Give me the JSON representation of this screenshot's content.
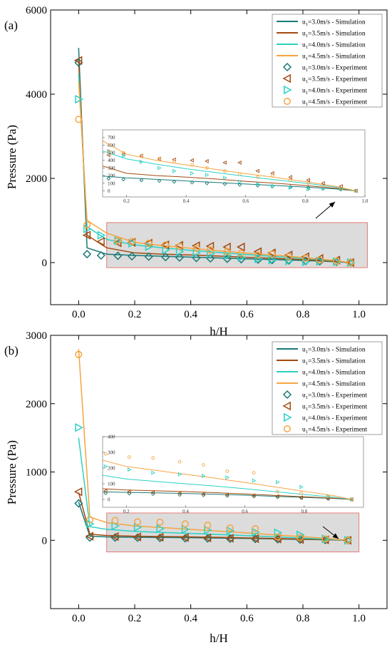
{
  "colors": {
    "u30": "#1a7a76",
    "u35": "#a24a10",
    "u40": "#2bd1c4",
    "u45": "#f5a442",
    "highlight_fill": "#dcdcdc",
    "highlight_stroke": "#e87c78"
  },
  "chart_data": [
    {
      "type": "line",
      "panel_label": "(a)",
      "xlabel": "h/H",
      "ylabel": "Pressure (Pa)",
      "xlim": [
        -0.1,
        1.1
      ],
      "ylim": [
        -1000,
        6000
      ],
      "xticks": [
        0.0,
        0.2,
        0.4,
        0.6,
        0.8,
        1.0
      ],
      "xtick_labels": [
        "0.0",
        "0.2",
        "0.4",
        "0.6",
        "0.8",
        "1.0"
      ],
      "yticks": [
        0,
        2000,
        4000,
        6000
      ],
      "ytick_labels": [
        "0",
        "2000",
        "4000",
        "6000"
      ],
      "legend_position": "top-right",
      "highlight_region": {
        "x": [
          0.1,
          1.03
        ],
        "y": [
          -120,
          950
        ]
      },
      "inset": {
        "xlim": [
          0.12,
          1.0
        ],
        "ylim": [
          -80,
          800
        ],
        "xticks": [
          0.2,
          0.4,
          0.6,
          0.8,
          1.0
        ],
        "xtick_labels": [
          "0.2",
          "0.4",
          "0.6",
          "0.8",
          "1.0"
        ],
        "yticks": [
          0,
          100,
          200,
          300,
          400,
          500,
          600,
          700
        ],
        "ytick_labels": [
          "0",
          "100",
          "200",
          "300",
          "400",
          "500",
          "600",
          "700"
        ]
      },
      "series": [
        {
          "name": "u1=3.0m/s - Simulation",
          "legend_base": "u",
          "legend_sub": "1",
          "legend_rest": "=3.0m/s - Simulation",
          "kind": "line",
          "color_key": "u30",
          "x": [
            0.0,
            0.03,
            0.1,
            0.2,
            0.3,
            0.4,
            0.5,
            0.6,
            0.7,
            0.8,
            0.9,
            0.97
          ],
          "y": [
            5100,
            350,
            200,
            170,
            150,
            130,
            110,
            90,
            70,
            50,
            25,
            0
          ]
        },
        {
          "name": "u1=3.5m/s - Simulation",
          "legend_base": "u",
          "legend_sub": "1",
          "legend_rest": "=3.5m/s - Simulation",
          "kind": "line",
          "color_key": "u35",
          "x": [
            0.0,
            0.03,
            0.1,
            0.2,
            0.3,
            0.4,
            0.5,
            0.6,
            0.7,
            0.8,
            0.9,
            0.97
          ],
          "y": [
            4800,
            650,
            350,
            230,
            200,
            180,
            155,
            125,
            100,
            70,
            35,
            0
          ]
        },
        {
          "name": "u1=4.0m/s - Simulation",
          "legend_base": "u",
          "legend_sub": "1",
          "legend_rest": "=4.0m/s - Simulation",
          "kind": "line",
          "color_key": "u40",
          "x": [
            0.0,
            0.03,
            0.1,
            0.2,
            0.3,
            0.4,
            0.5,
            0.6,
            0.7,
            0.8,
            0.9,
            0.97
          ],
          "y": [
            4500,
            850,
            550,
            420,
            350,
            290,
            240,
            190,
            145,
            100,
            50,
            0
          ]
        },
        {
          "name": "u1=4.5m/s - Simulation",
          "legend_base": "u",
          "legend_sub": "1",
          "legend_rest": "=4.5m/s - Simulation",
          "kind": "line",
          "color_key": "u45",
          "x": [
            0.0,
            0.03,
            0.1,
            0.2,
            0.3,
            0.4,
            0.5,
            0.6,
            0.7,
            0.8,
            0.9,
            0.97
          ],
          "y": [
            4300,
            1000,
            700,
            480,
            400,
            340,
            280,
            225,
            175,
            120,
            60,
            0
          ]
        },
        {
          "name": "u1=3.0m/s - Experiment",
          "legend_base": "u",
          "legend_sub": "1",
          "legend_rest": "=3.0m/s - Experiment",
          "kind": "marker",
          "marker": "diamond",
          "color_key": "u30",
          "x": [
            0.0,
            0.03,
            0.08,
            0.14,
            0.19,
            0.25,
            0.31,
            0.36,
            0.42,
            0.47,
            0.53,
            0.58,
            0.64,
            0.69,
            0.75,
            0.81,
            0.86,
            0.92,
            0.97
          ],
          "y": [
            4750,
            200,
            170,
            160,
            150,
            140,
            130,
            120,
            110,
            100,
            90,
            80,
            70,
            60,
            50,
            40,
            30,
            20,
            0
          ]
        },
        {
          "name": "u1=3.5m/s - Experiment",
          "legend_base": "u",
          "legend_sub": "1",
          "legend_rest": "=3.5m/s - Experiment",
          "kind": "marker",
          "marker": "triangle-left",
          "color_key": "u35",
          "x": [
            0.0,
            0.03,
            0.08,
            0.14,
            0.19,
            0.25,
            0.31,
            0.36,
            0.42,
            0.47,
            0.53,
            0.58,
            0.64,
            0.69,
            0.75,
            0.81,
            0.86,
            0.92,
            0.97
          ],
          "y": [
            4800,
            650,
            500,
            470,
            480,
            460,
            420,
            410,
            400,
            390,
            370,
            370,
            260,
            230,
            180,
            140,
            100,
            60,
            0
          ]
        },
        {
          "name": "u1=4.0m/s - Experiment",
          "legend_base": "u",
          "legend_sub": "1",
          "legend_rest": "=4.0m/s - Experiment",
          "kind": "marker",
          "marker": "triangle-right",
          "color_key": "u40",
          "x": [
            0.0,
            0.03,
            0.08,
            0.14,
            0.19,
            0.25,
            0.31,
            0.36,
            0.42,
            0.47,
            0.53,
            0.58,
            0.64,
            0.69,
            0.75,
            0.81,
            0.86,
            0.92,
            0.97
          ],
          "y": [
            3880,
            800,
            650,
            520,
            460,
            380,
            300,
            260,
            230,
            210,
            170,
            120,
            90,
            60,
            40,
            20,
            30,
            20,
            0
          ]
        },
        {
          "name": "u1=4.5m/s - Experiment",
          "legend_base": "u",
          "legend_sub": "1",
          "legend_rest": "=4.5m/s - Experiment",
          "kind": "marker",
          "marker": "circle",
          "color_key": "u45",
          "x": [
            0.0,
            0.03,
            0.14,
            0.19,
            0.25,
            0.31,
            0.36,
            0.42,
            0.47,
            0.53,
            0.58,
            0.64,
            0.69,
            0.75,
            0.81,
            0.86,
            0.92,
            0.97
          ],
          "y": [
            3400,
            900,
            520,
            500,
            460,
            420,
            380,
            340,
            300,
            260,
            220,
            180,
            200,
            140,
            100,
            60,
            30,
            0
          ]
        }
      ]
    },
    {
      "type": "line",
      "panel_label": "(b)",
      "xlabel": "h/H",
      "ylabel": "Pressure (Pa)",
      "xlim": [
        -0.1,
        1.1
      ],
      "ylim": [
        -1000,
        3000
      ],
      "xticks": [
        0.0,
        0.2,
        0.4,
        0.6,
        0.8,
        1.0
      ],
      "xtick_labels": [
        "0.0",
        "0.2",
        "0.4",
        "0.6",
        "0.8",
        "1.0"
      ],
      "yticks": [
        0,
        1000,
        2000,
        3000
      ],
      "ytick_labels": [
        "0",
        "1000",
        "2000",
        "3000"
      ],
      "legend_position": "top-right",
      "highlight_region": {
        "x": [
          0.1,
          1.0
        ],
        "y": [
          -170,
          400
        ]
      },
      "inset": {
        "xlim": [
          0.12,
          1.0
        ],
        "ylim": [
          -50,
          400
        ],
        "xticks": [
          0.2,
          0.4,
          0.6,
          0.8
        ],
        "xtick_labels": [
          "0.2",
          "0.4",
          "0.6",
          "0.8"
        ],
        "yticks": [
          0,
          100,
          200,
          300,
          400
        ],
        "ytick_labels": [
          "0",
          "100",
          "200",
          "300",
          "400"
        ]
      },
      "series": [
        {
          "name": "u1=3.0m/s - Simulation",
          "legend_base": "u",
          "legend_sub": "1",
          "legend_rest": "=3.0m/s - Simulation",
          "kind": "line",
          "color_key": "u30",
          "x": [
            0.0,
            0.04,
            0.1,
            0.2,
            0.3,
            0.4,
            0.5,
            0.6,
            0.7,
            0.8,
            0.9,
            0.96
          ],
          "y": [
            560,
            60,
            50,
            45,
            42,
            38,
            33,
            27,
            20,
            13,
            6,
            0
          ]
        },
        {
          "name": "u1=3.5m/s - Simulation",
          "legend_base": "u",
          "legend_sub": "1",
          "legend_rest": "=3.5m/s - Simulation",
          "kind": "line",
          "color_key": "u35",
          "x": [
            0.0,
            0.04,
            0.1,
            0.2,
            0.3,
            0.4,
            0.5,
            0.6,
            0.7,
            0.8,
            0.9,
            0.96
          ],
          "y": [
            700,
            90,
            70,
            60,
            55,
            50,
            43,
            35,
            26,
            17,
            8,
            0
          ]
        },
        {
          "name": "u1=4.0m/s - Simulation",
          "legend_base": "u",
          "legend_sub": "1",
          "legend_rest": "=4.0m/s - Simulation",
          "kind": "line",
          "color_key": "u40",
          "x": [
            0.0,
            0.04,
            0.1,
            0.2,
            0.3,
            0.4,
            0.5,
            0.6,
            0.7,
            0.8,
            0.9,
            0.96
          ],
          "y": [
            1500,
            200,
            160,
            130,
            115,
            100,
            85,
            68,
            50,
            32,
            14,
            0
          ]
        },
        {
          "name": "u1=4.5m/s - Simulation",
          "legend_base": "u",
          "legend_sub": "1",
          "legend_rest": "=4.5m/s - Simulation",
          "kind": "line",
          "color_key": "u45",
          "x": [
            0.0,
            0.04,
            0.1,
            0.2,
            0.3,
            0.4,
            0.5,
            0.6,
            0.7,
            0.8,
            0.9,
            0.96
          ],
          "y": [
            2800,
            340,
            260,
            210,
            185,
            160,
            135,
            108,
            80,
            52,
            24,
            0
          ]
        },
        {
          "name": "u1=3.0m/s - Experiment",
          "legend_base": "u",
          "legend_sub": "1",
          "legend_rest": "=3.0m/s - Experiment",
          "kind": "marker",
          "marker": "diamond",
          "color_key": "u30",
          "x": [
            0.0,
            0.04,
            0.13,
            0.21,
            0.29,
            0.38,
            0.46,
            0.54,
            0.63,
            0.71,
            0.79,
            0.88,
            0.96
          ],
          "y": [
            540,
            40,
            40,
            38,
            35,
            30,
            27,
            24,
            20,
            15,
            10,
            5,
            0
          ]
        },
        {
          "name": "u1=3.5m/s - Experiment",
          "legend_base": "u",
          "legend_sub": "1",
          "legend_rest": "=3.5m/s - Experiment",
          "kind": "marker",
          "marker": "triangle-left",
          "color_key": "u35",
          "x": [
            0.0,
            0.04,
            0.13,
            0.21,
            0.29,
            0.38,
            0.46,
            0.54,
            0.63,
            0.71,
            0.79,
            0.88,
            0.96
          ],
          "y": [
            710,
            60,
            55,
            50,
            45,
            40,
            35,
            30,
            25,
            20,
            12,
            6,
            0
          ]
        },
        {
          "name": "u1=4.0m/s - Experiment",
          "legend_base": "u",
          "legend_sub": "1",
          "legend_rest": "=4.0m/s - Experiment",
          "kind": "marker",
          "marker": "triangle-right",
          "color_key": "u40",
          "x": [
            0.0,
            0.04,
            0.13,
            0.21,
            0.29,
            0.38,
            0.46,
            0.54,
            0.63,
            0.71,
            0.79,
            0.88,
            0.96
          ],
          "y": [
            1650,
            240,
            210,
            190,
            170,
            160,
            150,
            140,
            120,
            110,
            80,
            20,
            0
          ]
        },
        {
          "name": "u1=4.5m/s - Experiment",
          "legend_base": "u",
          "legend_sub": "1",
          "legend_rest": "=4.5m/s - Experiment",
          "kind": "marker",
          "marker": "circle",
          "color_key": "u45",
          "x": [
            0.0,
            0.04,
            0.13,
            0.21,
            0.29,
            0.38,
            0.46,
            0.54,
            0.63,
            0.71,
            0.79,
            0.88,
            0.96
          ],
          "y": [
            2720,
            300,
            290,
            270,
            265,
            240,
            220,
            180,
            170,
            50,
            40,
            20,
            0
          ]
        }
      ]
    }
  ]
}
